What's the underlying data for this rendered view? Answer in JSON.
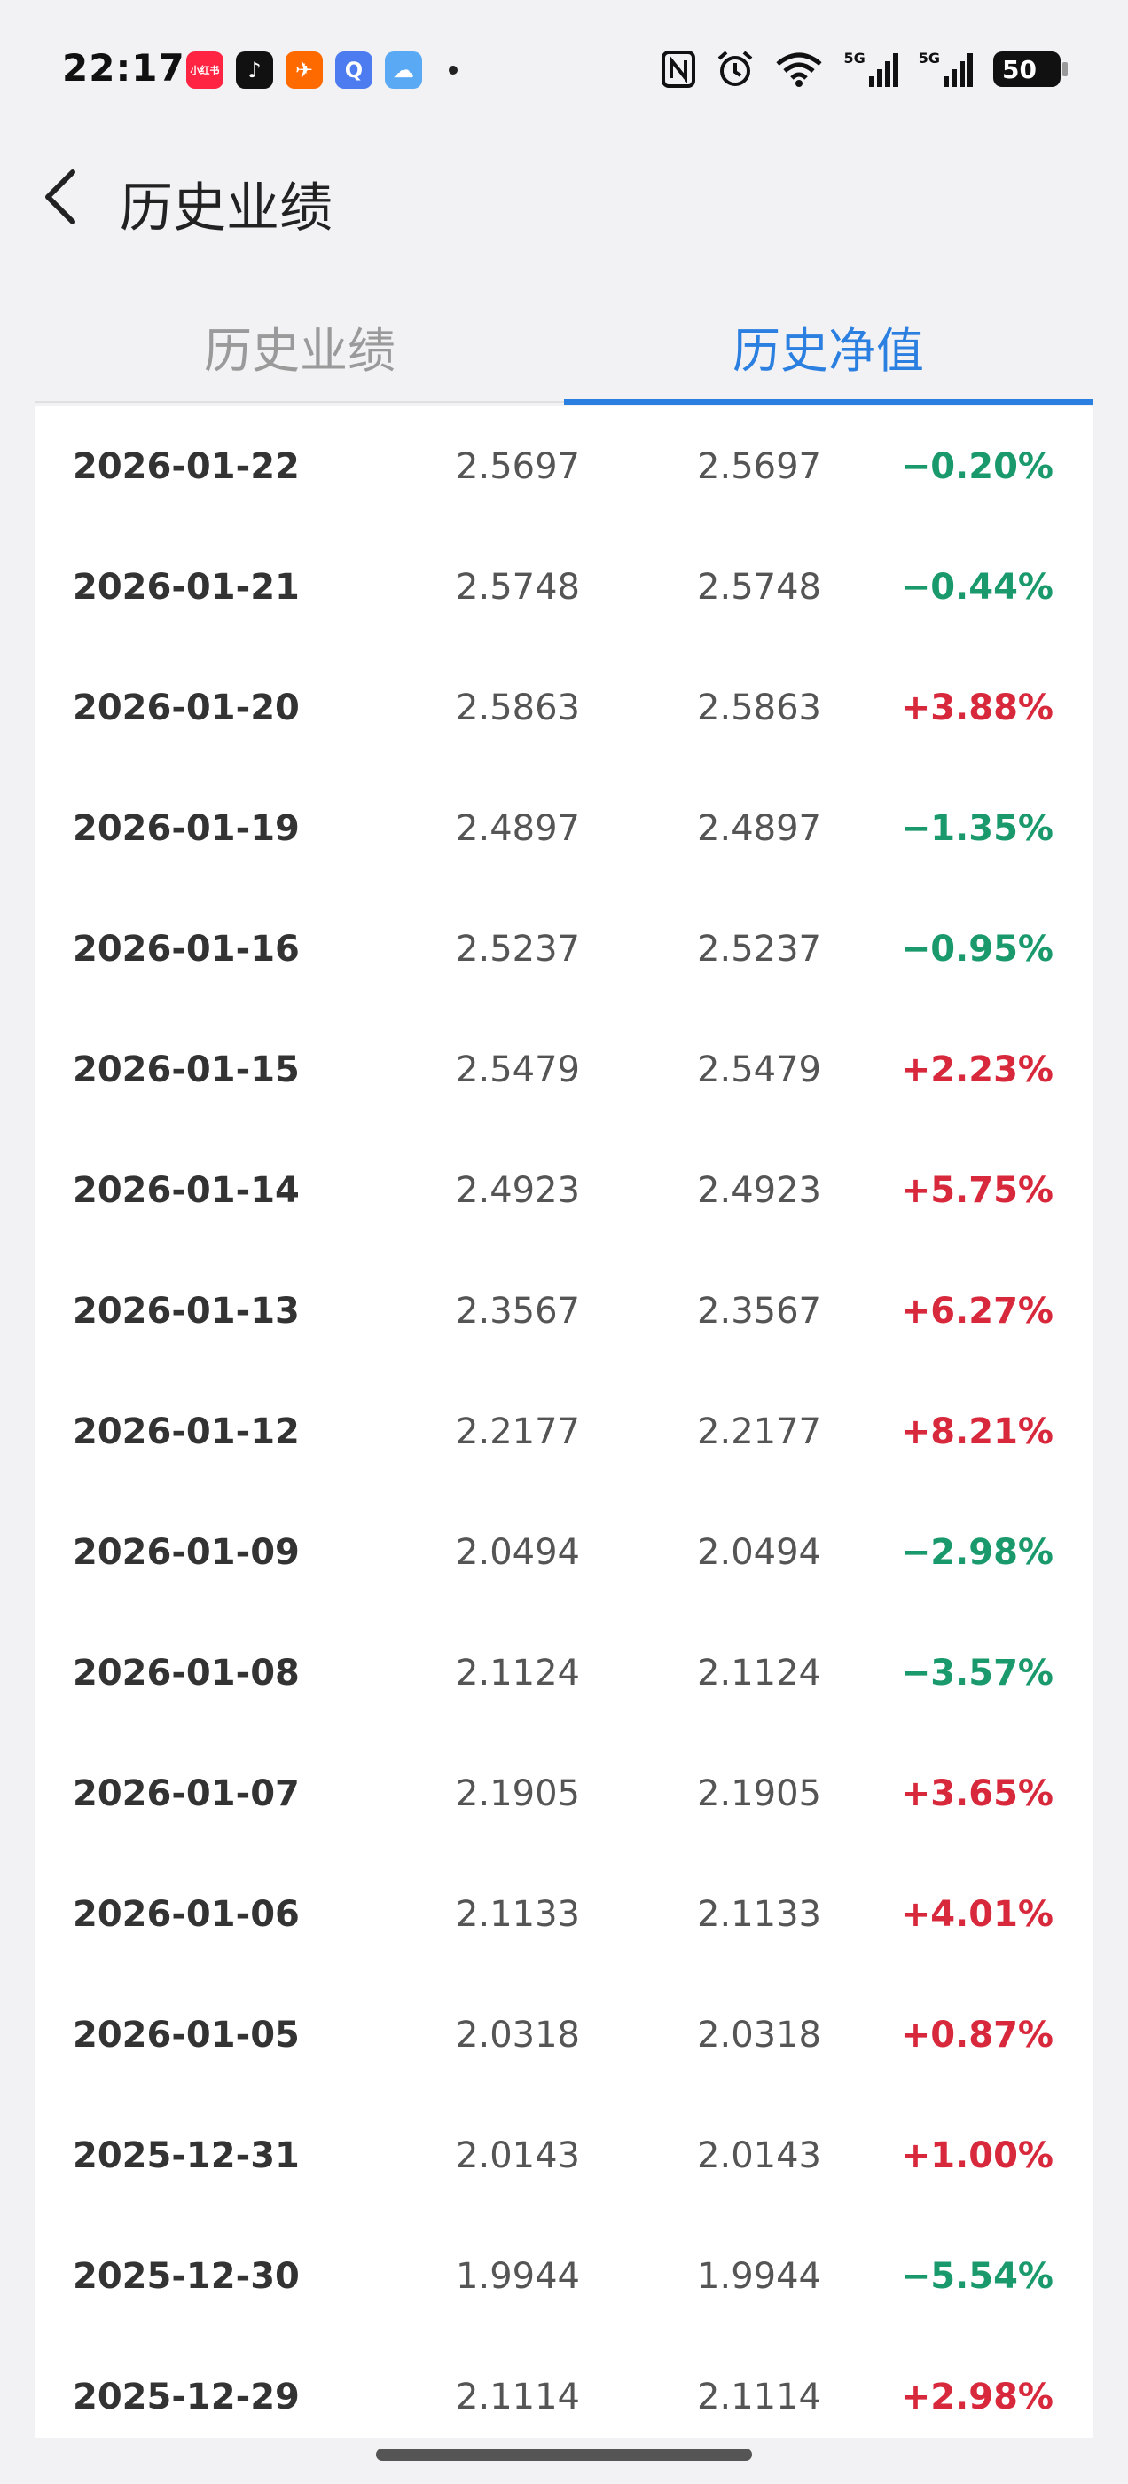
{
  "status_bar": {
    "time": "22:17",
    "apps": [
      {
        "name": "xiaohongshu-icon",
        "label": "小红书",
        "color": "#ff2442"
      },
      {
        "name": "douyin-icon",
        "label": "♪",
        "color": "#111111"
      },
      {
        "name": "feishu-icon",
        "label": "✈",
        "color": "#ff6a00"
      },
      {
        "name": "search-app-icon",
        "label": "Q",
        "color": "#4c7cf0"
      },
      {
        "name": "weather-icon",
        "label": "☁",
        "color": "#5aa9f5"
      }
    ],
    "battery": "50",
    "net1": "5G",
    "net2": "5G"
  },
  "header": {
    "title": "历史业绩"
  },
  "tabs": [
    {
      "label": "历史业绩",
      "active": false
    },
    {
      "label": "历史净值",
      "active": true
    }
  ],
  "colors": {
    "accent": "#2a7fe0",
    "up": "#d8283c",
    "down": "#1a9a6c"
  },
  "rows": [
    {
      "date": "2026-01-22",
      "nav": "2.5697",
      "acc_nav": "2.5697",
      "change": "−0.20%",
      "dir": "down"
    },
    {
      "date": "2026-01-21",
      "nav": "2.5748",
      "acc_nav": "2.5748",
      "change": "−0.44%",
      "dir": "down"
    },
    {
      "date": "2026-01-20",
      "nav": "2.5863",
      "acc_nav": "2.5863",
      "change": "+3.88%",
      "dir": "up"
    },
    {
      "date": "2026-01-19",
      "nav": "2.4897",
      "acc_nav": "2.4897",
      "change": "−1.35%",
      "dir": "down"
    },
    {
      "date": "2026-01-16",
      "nav": "2.5237",
      "acc_nav": "2.5237",
      "change": "−0.95%",
      "dir": "down"
    },
    {
      "date": "2026-01-15",
      "nav": "2.5479",
      "acc_nav": "2.5479",
      "change": "+2.23%",
      "dir": "up"
    },
    {
      "date": "2026-01-14",
      "nav": "2.4923",
      "acc_nav": "2.4923",
      "change": "+5.75%",
      "dir": "up"
    },
    {
      "date": "2026-01-13",
      "nav": "2.3567",
      "acc_nav": "2.3567",
      "change": "+6.27%",
      "dir": "up"
    },
    {
      "date": "2026-01-12",
      "nav": "2.2177",
      "acc_nav": "2.2177",
      "change": "+8.21%",
      "dir": "up"
    },
    {
      "date": "2026-01-09",
      "nav": "2.0494",
      "acc_nav": "2.0494",
      "change": "−2.98%",
      "dir": "down"
    },
    {
      "date": "2026-01-08",
      "nav": "2.1124",
      "acc_nav": "2.1124",
      "change": "−3.57%",
      "dir": "down"
    },
    {
      "date": "2026-01-07",
      "nav": "2.1905",
      "acc_nav": "2.1905",
      "change": "+3.65%",
      "dir": "up"
    },
    {
      "date": "2026-01-06",
      "nav": "2.1133",
      "acc_nav": "2.1133",
      "change": "+4.01%",
      "dir": "up"
    },
    {
      "date": "2026-01-05",
      "nav": "2.0318",
      "acc_nav": "2.0318",
      "change": "+0.87%",
      "dir": "up"
    },
    {
      "date": "2025-12-31",
      "nav": "2.0143",
      "acc_nav": "2.0143",
      "change": "+1.00%",
      "dir": "up"
    },
    {
      "date": "2025-12-30",
      "nav": "1.9944",
      "acc_nav": "1.9944",
      "change": "−5.54%",
      "dir": "down"
    },
    {
      "date": "2025-12-29",
      "nav": "2.1114",
      "acc_nav": "2.1114",
      "change": "+2.98%",
      "dir": "up"
    }
  ]
}
